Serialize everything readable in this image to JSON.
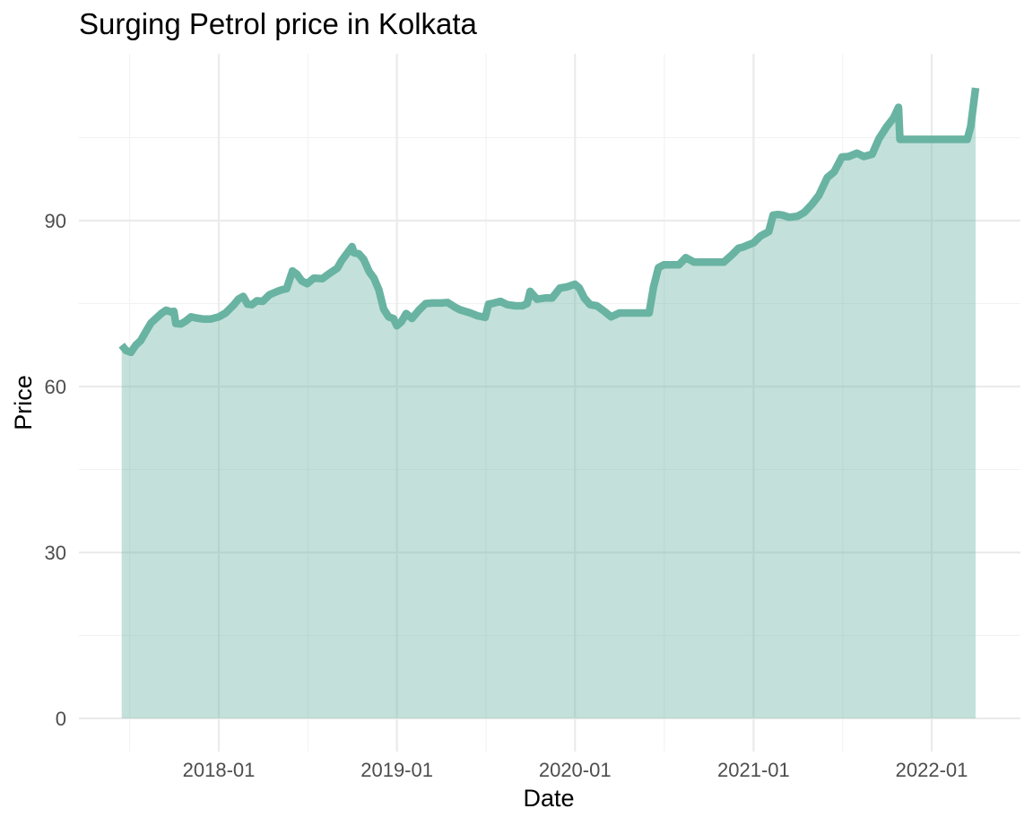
{
  "chart_data": {
    "type": "area",
    "title": "Surging Petrol price in Kolkata",
    "xlabel": "Date",
    "ylabel": "Price",
    "xlim": [
      "2017-06-01",
      "2022-04-01"
    ],
    "ylim": [
      0,
      116
    ],
    "x_ticks": [
      "2018-01",
      "2019-01",
      "2020-01",
      "2021-01",
      "2022-01"
    ],
    "y_ticks": [
      0,
      30,
      60,
      90
    ],
    "grid": true,
    "legend": "none",
    "colors": {
      "line": "#69b3a2",
      "fill": "#69b3a2"
    },
    "fill_opacity": 0.4,
    "series": [
      {
        "x": [
          "2017-06-16",
          "2017-06-25",
          "2017-07-05",
          "2017-07-15",
          "2017-07-25",
          "2017-08-05",
          "2017-08-15",
          "2017-08-25",
          "2017-09-05",
          "2017-09-15",
          "2017-09-25",
          "2017-10-01",
          "2017-10-05",
          "2017-10-15",
          "2017-10-25",
          "2017-11-05",
          "2017-11-15",
          "2017-12-01",
          "2017-12-15",
          "2018-01-01",
          "2018-01-15",
          "2018-02-01",
          "2018-02-10",
          "2018-02-20",
          "2018-03-01",
          "2018-03-10",
          "2018-03-20",
          "2018-04-01",
          "2018-04-15",
          "2018-05-01",
          "2018-05-10",
          "2018-05-20",
          "2018-06-01",
          "2018-06-10",
          "2018-06-20",
          "2018-07-01",
          "2018-07-15",
          "2018-08-01",
          "2018-08-15",
          "2018-09-01",
          "2018-09-10",
          "2018-09-20",
          "2018-10-01",
          "2018-10-05",
          "2018-10-15",
          "2018-10-25",
          "2018-11-05",
          "2018-11-15",
          "2018-11-25",
          "2018-12-05",
          "2018-12-15",
          "2018-12-25",
          "2019-01-01",
          "2019-01-10",
          "2019-01-20",
          "2019-02-01",
          "2019-02-15",
          "2019-03-01",
          "2019-03-15",
          "2019-04-01",
          "2019-04-15",
          "2019-05-01",
          "2019-05-10",
          "2019-05-20",
          "2019-06-01",
          "2019-06-15",
          "2019-07-01",
          "2019-07-08",
          "2019-07-15",
          "2019-08-01",
          "2019-08-15",
          "2019-09-01",
          "2019-09-15",
          "2019-09-25",
          "2019-10-01",
          "2019-10-15",
          "2019-11-01",
          "2019-11-15",
          "2019-12-01",
          "2019-12-15",
          "2020-01-01",
          "2020-01-10",
          "2020-01-20",
          "2020-02-01",
          "2020-02-15",
          "2020-03-01",
          "2020-03-15",
          "2020-04-01",
          "2020-05-01",
          "2020-06-01",
          "2020-06-10",
          "2020-06-20",
          "2020-07-01",
          "2020-08-01",
          "2020-08-15",
          "2020-09-01",
          "2020-09-15",
          "2020-10-01",
          "2020-11-01",
          "2020-11-20",
          "2020-12-01",
          "2020-12-10",
          "2021-01-01",
          "2021-01-15",
          "2021-02-01",
          "2021-02-10",
          "2021-02-20",
          "2021-03-01",
          "2021-03-15",
          "2021-04-01",
          "2021-04-15",
          "2021-05-01",
          "2021-05-15",
          "2021-06-01",
          "2021-06-15",
          "2021-07-01",
          "2021-07-15",
          "2021-08-01",
          "2021-08-15",
          "2021-09-01",
          "2021-09-15",
          "2021-10-01",
          "2021-10-15",
          "2021-10-25",
          "2021-10-28",
          "2021-11-04",
          "2021-12-01",
          "2022-01-01",
          "2022-02-01",
          "2022-03-01",
          "2022-03-15",
          "2022-03-22",
          "2022-04-01"
        ],
        "y": [
          67.5,
          66.5,
          66.2,
          67.5,
          68.3,
          70.0,
          71.5,
          72.3,
          73.2,
          73.8,
          73.5,
          73.6,
          71.4,
          71.3,
          71.8,
          72.6,
          72.4,
          72.2,
          72.2,
          72.6,
          73.3,
          74.8,
          75.8,
          76.3,
          74.9,
          74.8,
          75.5,
          75.4,
          76.6,
          77.2,
          77.5,
          77.7,
          80.9,
          80.3,
          79.1,
          78.6,
          79.6,
          79.5,
          80.4,
          81.4,
          82.8,
          84.0,
          85.3,
          84.2,
          84.0,
          83.0,
          80.8,
          79.6,
          77.5,
          74.0,
          72.6,
          72.3,
          71.0,
          71.7,
          73.2,
          72.3,
          73.8,
          75.0,
          75.1,
          75.1,
          75.2,
          74.3,
          73.9,
          73.6,
          73.3,
          72.8,
          72.5,
          74.9,
          75.0,
          75.4,
          74.8,
          74.6,
          74.6,
          75.0,
          77.2,
          75.8,
          76.0,
          76.0,
          77.8,
          78.0,
          78.5,
          77.8,
          76.0,
          74.8,
          74.6,
          73.6,
          72.6,
          73.3,
          73.3,
          73.3,
          78.0,
          81.5,
          82.0,
          82.0,
          83.3,
          82.5,
          82.5,
          82.5,
          82.5,
          84.0,
          85.0,
          85.2,
          86.0,
          87.2,
          88.0,
          91.0,
          91.1,
          91.0,
          90.6,
          90.8,
          91.5,
          93.0,
          94.6,
          97.8,
          98.8,
          101.5,
          101.6,
          102.2,
          101.6,
          102.0,
          104.8,
          107.0,
          108.6,
          110.5,
          104.7,
          104.7,
          104.7,
          104.7,
          104.7,
          104.7,
          104.7,
          107.0,
          114.0
        ]
      }
    ]
  }
}
